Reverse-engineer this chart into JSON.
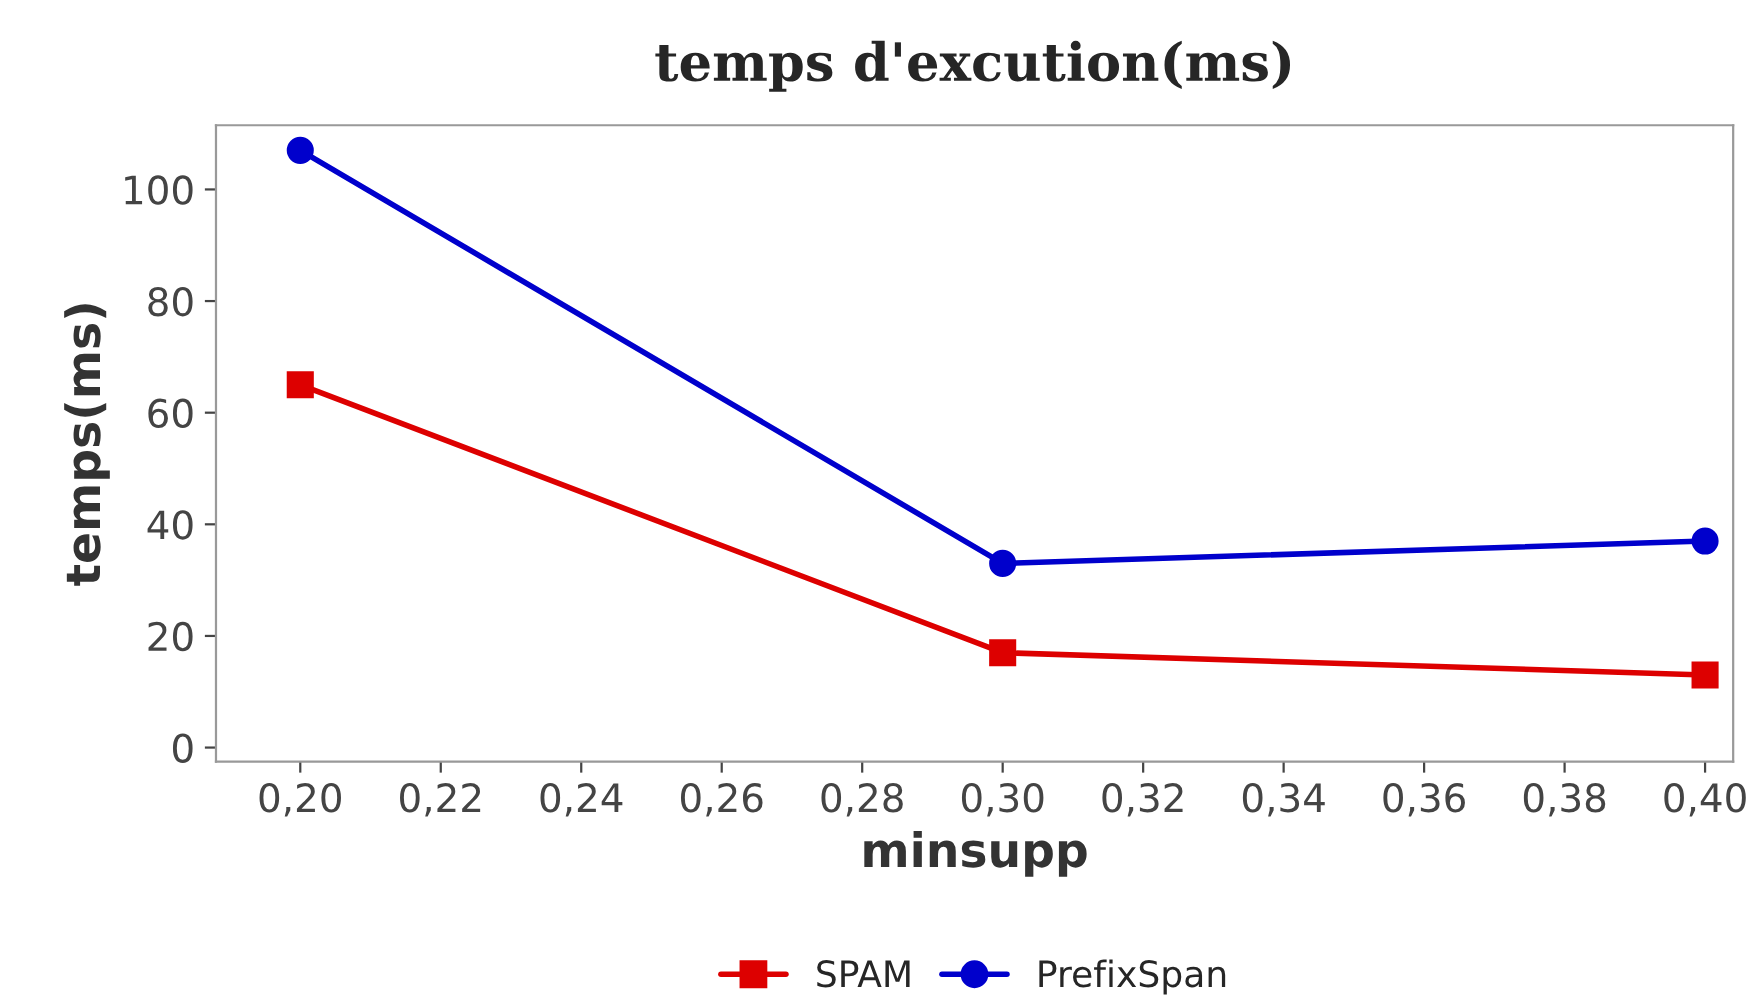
{
  "chart_data": {
    "type": "line",
    "title": "temps d'excution(ms)",
    "xlabel": "minsupp",
    "ylabel": "temps(ms)",
    "x": [
      0.2,
      0.3,
      0.4
    ],
    "series": [
      {
        "name": "SPAM",
        "color": "#dd0000",
        "values": [
          65,
          17,
          13
        ],
        "marker": "square"
      },
      {
        "name": "PrefixSpan",
        "color": "#0000cc",
        "values": [
          107,
          33,
          37
        ],
        "marker": "circle"
      }
    ],
    "xlim": [
      0.188,
      0.404
    ],
    "ylim": [
      -2.5,
      111.5
    ],
    "xticks": [
      {
        "value": 0.2,
        "label": "0,20"
      },
      {
        "value": 0.22,
        "label": "0,22"
      },
      {
        "value": 0.24,
        "label": "0,24"
      },
      {
        "value": 0.26,
        "label": "0,26"
      },
      {
        "value": 0.28,
        "label": "0,28"
      },
      {
        "value": 0.3,
        "label": "0,30"
      },
      {
        "value": 0.32,
        "label": "0,32"
      },
      {
        "value": 0.34,
        "label": "0,34"
      },
      {
        "value": 0.36,
        "label": "0,36"
      },
      {
        "value": 0.38,
        "label": "0,38"
      },
      {
        "value": 0.4,
        "label": "0,40"
      }
    ],
    "yticks": [
      0,
      20,
      40,
      60,
      80,
      100
    ],
    "grid": false,
    "legend": "bottom",
    "line_style": "solid"
  }
}
